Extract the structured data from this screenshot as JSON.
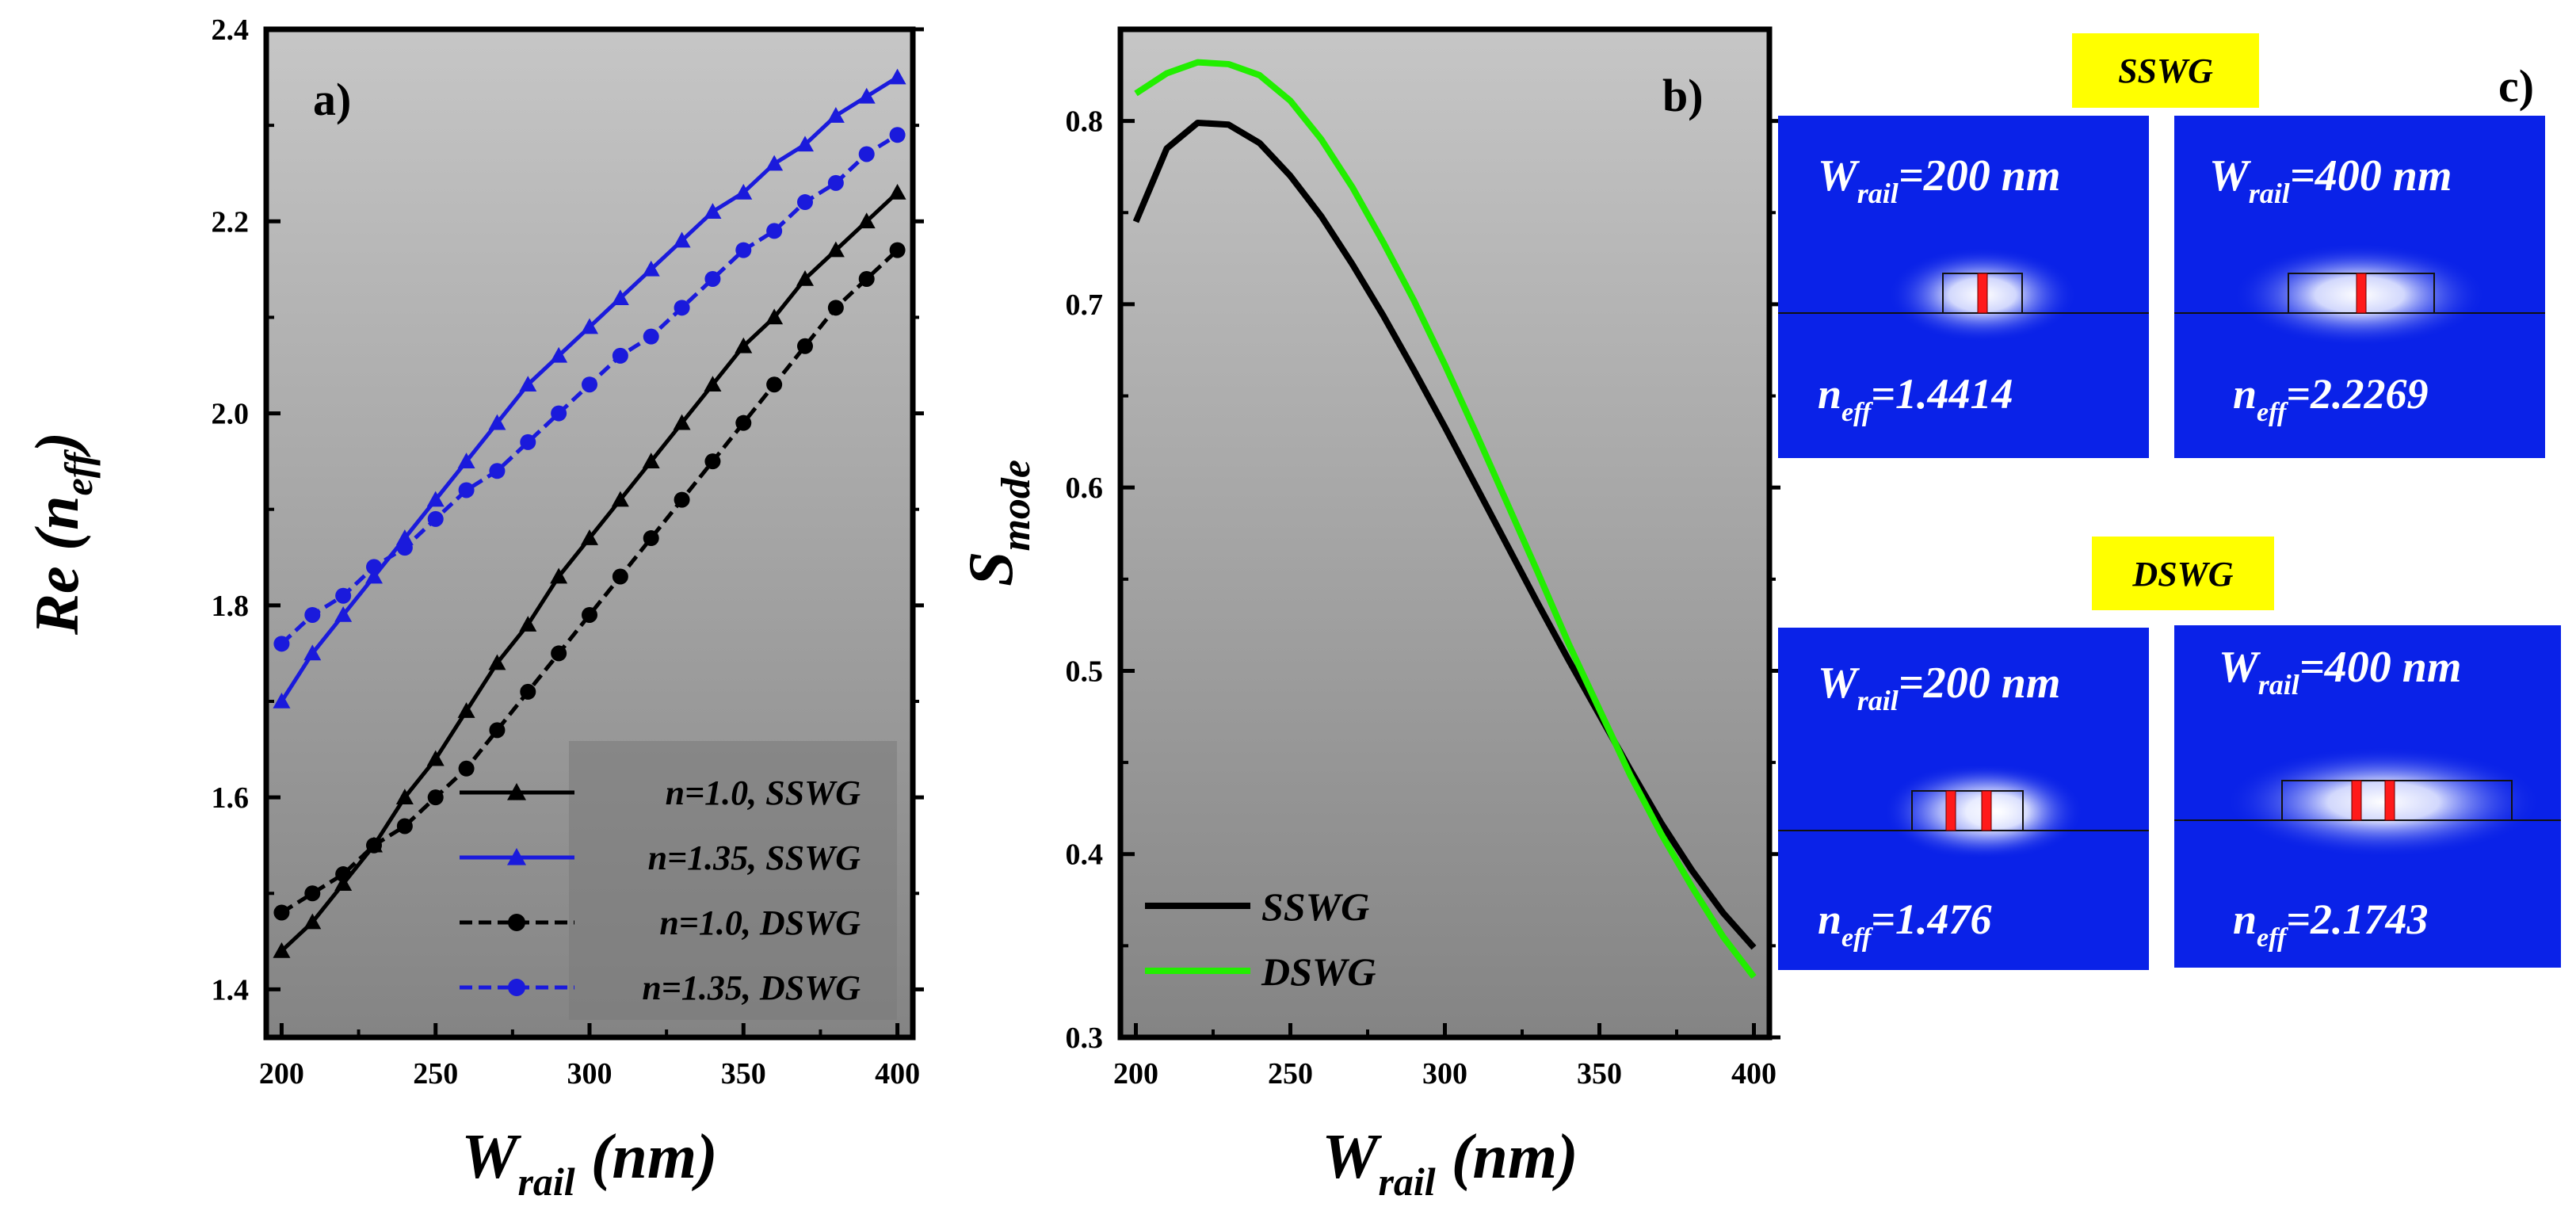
{
  "chart_data": [
    {
      "panel": "a)",
      "type": "line",
      "xlabel": "W",
      "xlabel_sub": "rail",
      "xlabel_unit": "(nm)",
      "ylabel": "Re (n",
      "ylabel_sub": "eff",
      "ylabel_close": ")",
      "xlim": [
        195,
        405
      ],
      "ylim": [
        1.35,
        2.4
      ],
      "xticks": [
        200,
        250,
        300,
        350,
        400
      ],
      "yticks": [
        1.4,
        1.6,
        1.8,
        2.0,
        2.2,
        2.4
      ],
      "ytick_labels": [
        "1.4",
        "1.6",
        "1.8",
        "2.0",
        "2.2",
        "2.4"
      ],
      "x": [
        200,
        210,
        220,
        230,
        240,
        250,
        260,
        270,
        280,
        290,
        300,
        310,
        320,
        330,
        340,
        350,
        360,
        370,
        380,
        390,
        400
      ],
      "legend_position": "bottom-right",
      "series": [
        {
          "name": "n=1.0, SSWG",
          "color": "#000000",
          "marker": "triangle",
          "dash": "solid",
          "values": [
            1.44,
            1.47,
            1.51,
            1.55,
            1.6,
            1.64,
            1.69,
            1.74,
            1.78,
            1.83,
            1.87,
            1.91,
            1.95,
            1.99,
            2.03,
            2.07,
            2.1,
            2.14,
            2.17,
            2.2,
            2.23
          ]
        },
        {
          "name": "n=1.35, SSWG",
          "color": "#1a1adc",
          "marker": "triangle",
          "dash": "solid",
          "values": [
            1.7,
            1.75,
            1.79,
            1.83,
            1.87,
            1.91,
            1.95,
            1.99,
            2.03,
            2.06,
            2.09,
            2.12,
            2.15,
            2.18,
            2.21,
            2.23,
            2.26,
            2.28,
            2.31,
            2.33,
            2.35
          ]
        },
        {
          "name": "n=1.0, DSWG",
          "color": "#000000",
          "marker": "circle",
          "dash": "dashed",
          "values": [
            1.48,
            1.5,
            1.52,
            1.55,
            1.57,
            1.6,
            1.63,
            1.67,
            1.71,
            1.75,
            1.79,
            1.83,
            1.87,
            1.91,
            1.95,
            1.99,
            2.03,
            2.07,
            2.11,
            2.14,
            2.17
          ]
        },
        {
          "name": "n=1.35, DSWG",
          "color": "#1a1adc",
          "marker": "circle",
          "dash": "dashed",
          "values": [
            1.76,
            1.79,
            1.81,
            1.84,
            1.86,
            1.89,
            1.92,
            1.94,
            1.97,
            2.0,
            2.03,
            2.06,
            2.08,
            2.11,
            2.14,
            2.17,
            2.19,
            2.22,
            2.24,
            2.27,
            2.29
          ]
        }
      ]
    },
    {
      "panel": "b)",
      "type": "line",
      "xlabel": "W",
      "xlabel_sub": "rail",
      "xlabel_unit": "(nm)",
      "ylabel": "S",
      "ylabel_sub": "mode",
      "xlim": [
        195,
        405
      ],
      "ylim": [
        0.3,
        0.85
      ],
      "xticks": [
        200,
        250,
        300,
        350,
        400
      ],
      "yticks": [
        0.3,
        0.4,
        0.5,
        0.6,
        0.7,
        0.8
      ],
      "ytick_labels": [
        "0.3",
        "0.4",
        "0.5",
        "0.6",
        "0.7",
        "0.8"
      ],
      "x": [
        200,
        210,
        220,
        230,
        240,
        250,
        260,
        270,
        280,
        290,
        300,
        310,
        320,
        330,
        340,
        350,
        360,
        370,
        380,
        390,
        400
      ],
      "legend_position": "bottom-left",
      "series": [
        {
          "name": "SSWG",
          "color": "#000000",
          "values": [
            0.745,
            0.785,
            0.799,
            0.798,
            0.788,
            0.77,
            0.748,
            0.722,
            0.694,
            0.664,
            0.633,
            0.601,
            0.569,
            0.537,
            0.506,
            0.476,
            0.446,
            0.417,
            0.391,
            0.368,
            0.349
          ]
        },
        {
          "name": "DSWG",
          "color": "#22ee00",
          "values": [
            0.815,
            0.826,
            0.832,
            0.831,
            0.825,
            0.811,
            0.79,
            0.764,
            0.734,
            0.702,
            0.667,
            0.63,
            0.592,
            0.554,
            0.515,
            0.479,
            0.443,
            0.411,
            0.382,
            0.355,
            0.333
          ]
        }
      ]
    }
  ],
  "panel_c": {
    "letter": "c)",
    "groups": [
      {
        "tag": "SSWG",
        "maps": [
          {
            "w_label": "W",
            "w_sub": "rail",
            "w_value": "=200 nm",
            "n_label": "n",
            "n_sub": "eff",
            "n_value": "=1.4414",
            "rails": 1
          },
          {
            "w_label": "W",
            "w_sub": "rail",
            "w_value": "=400 nm",
            "n_label": "n",
            "n_sub": "eff",
            "n_value": "=2.2269",
            "rails": 1
          }
        ]
      },
      {
        "tag": "DSWG",
        "maps": [
          {
            "w_label": "W",
            "w_sub": "rail",
            "w_value": "=200 nm",
            "n_label": "n",
            "n_sub": "eff",
            "n_value": "=1.476",
            "rails": 2
          },
          {
            "w_label": "W",
            "w_sub": "rail",
            "w_value": "=400 nm",
            "n_label": "n",
            "n_sub": "eff",
            "n_value": "=2.1743",
            "rails": 2
          }
        ]
      }
    ]
  },
  "colors": {
    "plot_bg_top": "#c4c4c4",
    "plot_bg_bottom": "#868686",
    "map_blue": "#0a22e8",
    "tag_yellow": "#ffff00",
    "rail_red": "#ff1a1a"
  }
}
